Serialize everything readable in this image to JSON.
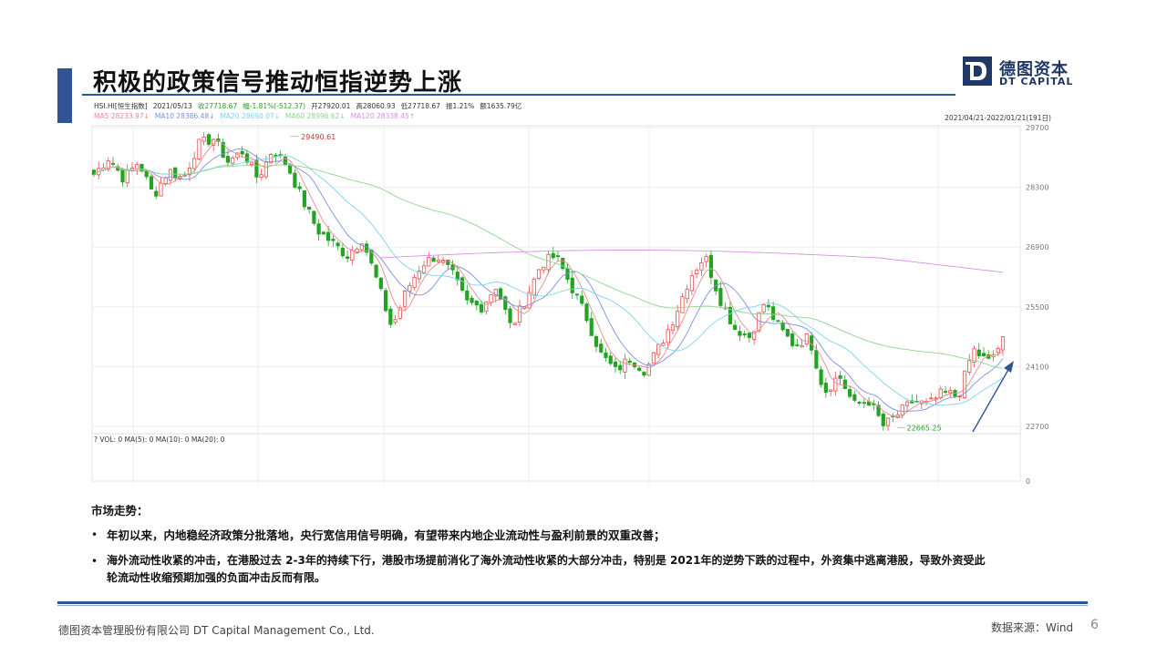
{
  "title": "积极的政策信号推动恒指逆势上涨",
  "logo": {
    "cn": "德图资本",
    "en": "DT CAPITAL"
  },
  "chart_panel": {
    "info_row1": [
      "HSI.HI[恒生指数]",
      "2021/05/13",
      "收27718.67",
      "幅-1.81%(-512.37)",
      "开27920.01",
      "高28060.93",
      "低27718.67",
      "振1.21%",
      "额1635.79亿"
    ],
    "info_row2": [
      "MA5 28233.97↓",
      "MA10 28386.48↓",
      "MA20 28690.07↓",
      "MA60 28996.62↓",
      "MA120 28338.45↑"
    ],
    "range_label": "2021/04/21-2022/01/21(191日)",
    "vol_label": "? VOL: 0  MA(5): 0  MA(10): 0  MA(20): 0"
  },
  "chart_data": {
    "type": "candlestick",
    "title": "",
    "xlabel": "",
    "ylabel": "",
    "ylim": [
      22000,
      29900
    ],
    "y_ticks": [
      29700,
      28300,
      26900,
      25500,
      24100,
      22700
    ],
    "volume_axis_tick": "0",
    "annotations": {
      "high": "29490.61",
      "low": "22665.25"
    },
    "colors": {
      "up": "#e74c4c",
      "down": "#22a322",
      "ma5": "#e88a8a",
      "ma10": "#7a90e0",
      "ma20": "#7fd3ea",
      "ma60": "#8fd68f",
      "ma120": "#d98fe6"
    },
    "waypoints": [
      28600,
      29000,
      28500,
      28900,
      28100,
      28700,
      28500,
      29300,
      29450,
      28900,
      29150,
      28500,
      29200,
      28800,
      28000,
      27300,
      27000,
      26700,
      27100,
      26100,
      25000,
      25900,
      26500,
      26700,
      26300,
      25600,
      25500,
      26000,
      25000,
      25700,
      26500,
      26700,
      26000,
      25300,
      24400,
      24000,
      24300,
      24000,
      24600,
      25300,
      26200,
      26700,
      25700,
      25000,
      24800,
      25600,
      25000,
      24600,
      24800,
      23500,
      23900,
      23200,
      23300,
      22700,
      23000,
      23300,
      23200,
      23500,
      23400,
      24500,
      24200,
      24700
    ]
  },
  "text": {
    "heading": "市场走势：",
    "bullet1": "年初以来，内地稳经济政策分批落地，央行宽信用信号明确，有望带来内地企业流动性与盈利前景的双重改善；",
    "bullet2_line1": "海外流动性收紧的冲击，在港股过去 2-3年的持续下行，港股市场提前消化了海外流动性收紧的大部分冲击，特别是 2021年的逆势下跌的过程中，外资集中逃离港股，导致外资受此",
    "bullet2_line2": "轮流动性收缩预期加强的负面冲击反而有限。",
    "bullet_mark": "•"
  },
  "footer": {
    "company": "德图资本管理股份有限公司 DT Capital Management Co., Ltd.",
    "source": "数据来源：Wind",
    "page": "6"
  }
}
